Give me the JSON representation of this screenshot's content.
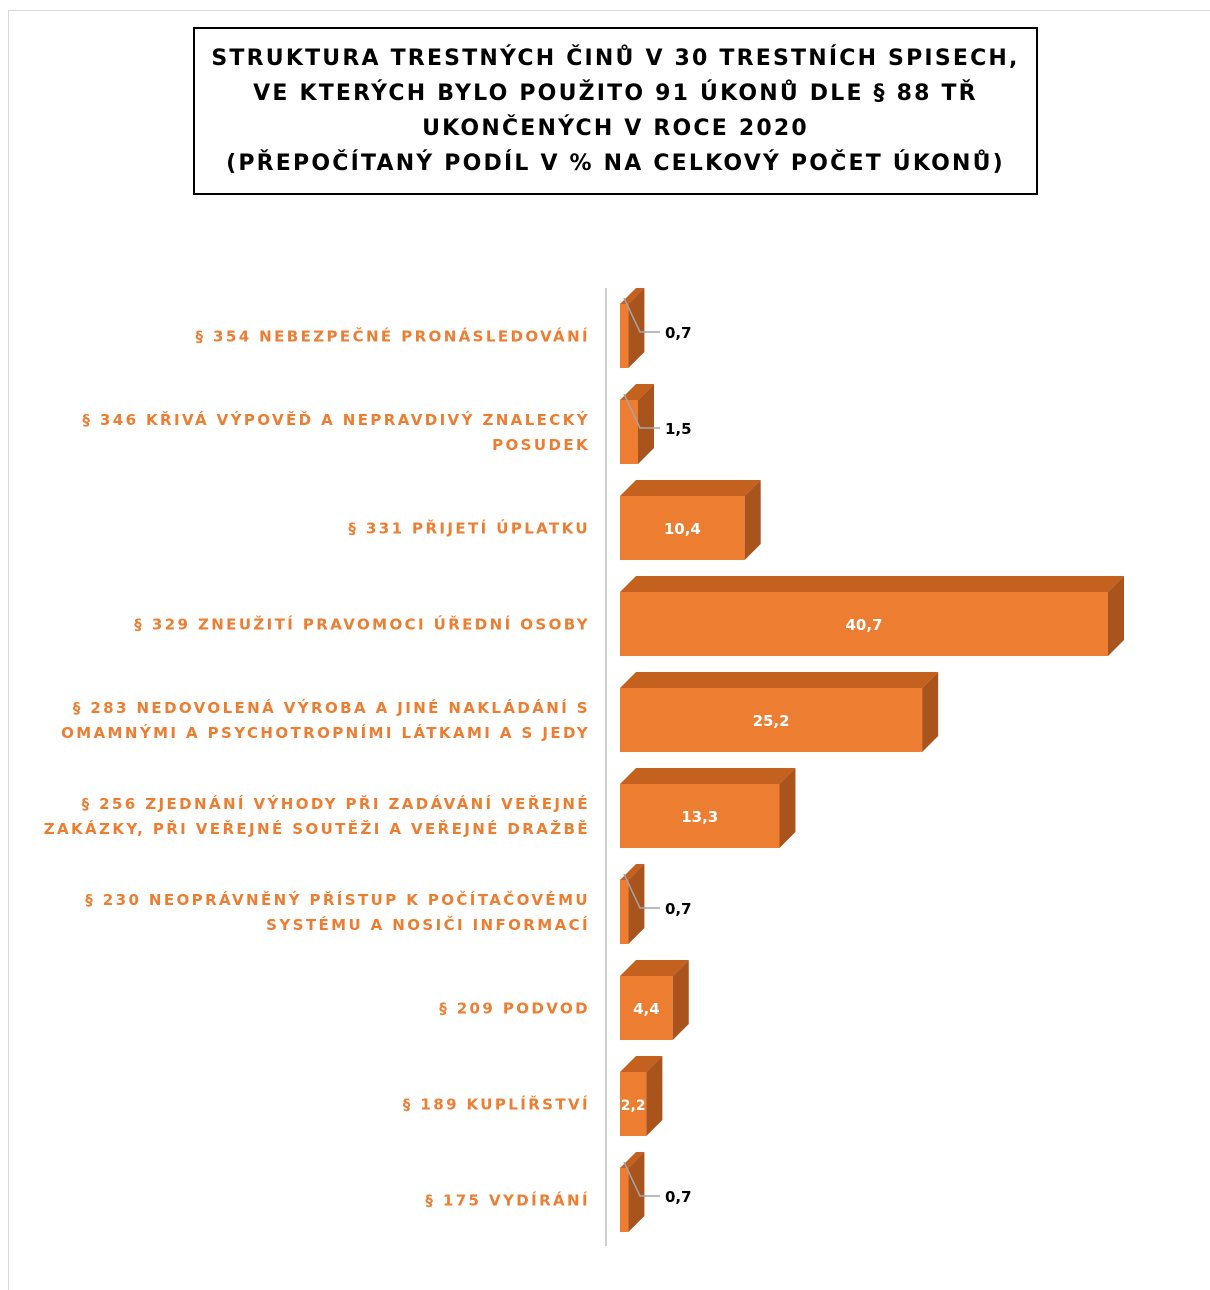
{
  "chart_data": {
    "type": "bar",
    "orientation": "horizontal",
    "style": "3d",
    "title_lines": [
      "STRUKTURA TRESTNÝCH ČINŮ V 30 TRESTNÍCH SPISECH,",
      "VE KTERÝCH BYLO POUŽITO 91 ÚKONŮ DLE § 88 TŘ",
      "UKONČENÝCH V ROCE 2020",
      "(PŘEPOČÍTANÝ PODÍL V % NA CELKOVÝ POČET ÚKONŮ)"
    ],
    "categories": [
      [
        "§ 354 NEBEZPEČNÉ PRONÁSLEDOVÁNÍ"
      ],
      [
        "§ 346 KŘIVÁ VÝPOVĚĎ A NEPRAVDIVÝ ZNALECKÝ",
        "POSUDEK"
      ],
      [
        "§ 331 PŘIJETÍ ÚPLATKU"
      ],
      [
        "§ 329 ZNEUŽITÍ PRAVOMOCI ÚŘEDNÍ OSOBY"
      ],
      [
        "§ 283 NEDOVOLENÁ VÝROBA A JINÉ NAKLÁDÁNÍ S",
        "OMAMNÝMI A PSYCHOTROPNÍMI LÁTKAMI A S JEDY"
      ],
      [
        "§ 256 ZJEDNÁNÍ VÝHODY PŘI ZADÁVÁNÍ VEŘEJNÉ",
        "ZAKÁZKY, PŘI VEŘEJNÉ SOUTĚŽI A VEŘEJNÉ DRAŽBĚ"
      ],
      [
        "§ 230 NEOPRÁVNĚNÝ PŘÍSTUP K POČÍTAČOVÉMU",
        "SYSTÉMU A NOSIČI INFORMACÍ"
      ],
      [
        "§ 209 PODVOD"
      ],
      [
        "§ 189 KUPLÍŘSTVÍ"
      ],
      [
        "§ 175 VYDÍRÁNÍ"
      ]
    ],
    "values": [
      0.7,
      1.5,
      10.4,
      40.7,
      25.2,
      13.3,
      0.7,
      4.4,
      2.2,
      0.7
    ],
    "value_labels": [
      "0,7",
      "1,5",
      "10,4",
      "40,7",
      "25,2",
      "13,3",
      "0,7",
      "4,4",
      "2,2",
      "0,7"
    ],
    "xlabel": "",
    "ylabel": "",
    "unit": "%",
    "grid": false,
    "legend": "none",
    "colors": {
      "bar_front": "#ed7d31",
      "bar_top": "#c5611f",
      "bar_side": "#a9541c",
      "category_text": "#ed7d31",
      "label_inside": "#ffffff",
      "label_outside": "#000000",
      "leader_line": "#a6a6a6",
      "axis_line": "#bfbfbf"
    }
  }
}
